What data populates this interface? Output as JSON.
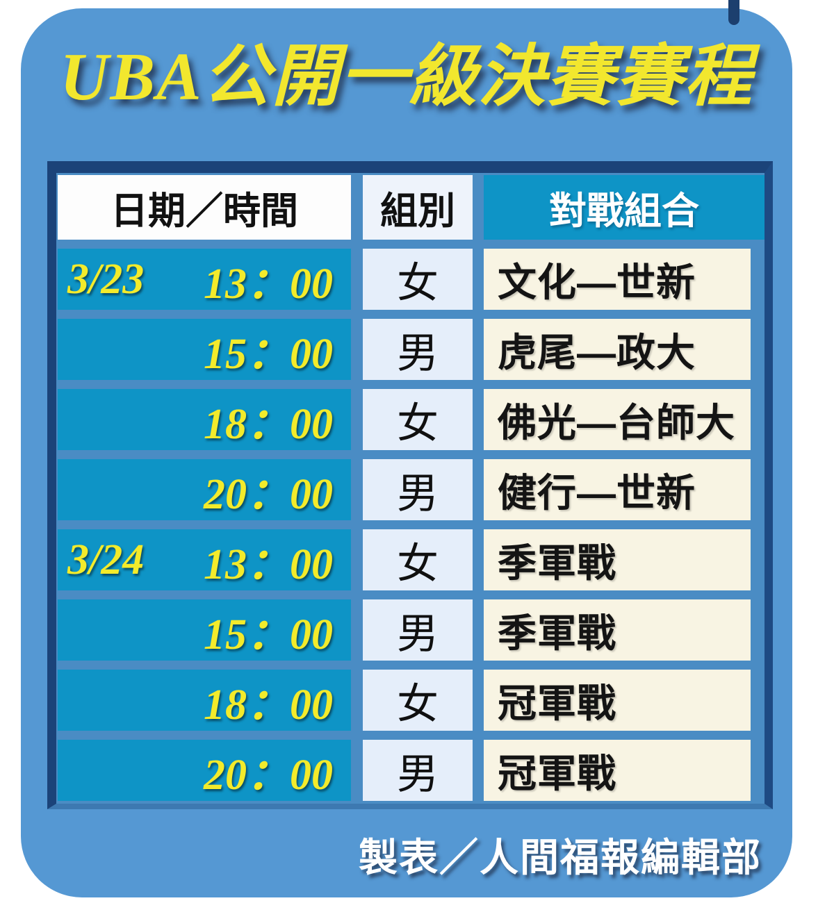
{
  "title": "UBA公開一級決賽賽程",
  "table": {
    "headers": [
      "日期／時間",
      "組別",
      "對戰組合"
    ],
    "rows": [
      {
        "date": "3/23",
        "time": "13：00",
        "group": "女",
        "matchup": "文化—世新"
      },
      {
        "date": "",
        "time": "15：00",
        "group": "男",
        "matchup": "虎尾—政大"
      },
      {
        "date": "",
        "time": "18：00",
        "group": "女",
        "matchup": "佛光—台師大"
      },
      {
        "date": "",
        "time": "20：00",
        "group": "男",
        "matchup": "健行—世新"
      },
      {
        "date": "3/24",
        "time": "13：00",
        "group": "女",
        "matchup": "季軍戰"
      },
      {
        "date": "",
        "time": "15：00",
        "group": "男",
        "matchup": "季軍戰"
      },
      {
        "date": "",
        "time": "18：00",
        "group": "女",
        "matchup": "冠軍戰"
      },
      {
        "date": "",
        "time": "20：00",
        "group": "男",
        "matchup": "冠軍戰"
      }
    ]
  },
  "footer": {
    "credit": "製表／人間福報編輯部"
  },
  "chart_data": {
    "type": "table",
    "title": "UBA公開一級決賽賽程",
    "columns": [
      "日期／時間",
      "組別",
      "對戰組合"
    ],
    "rows": [
      [
        "3/23 13：00",
        "女",
        "文化—世新"
      ],
      [
        "3/23 15：00",
        "男",
        "虎尾—政大"
      ],
      [
        "3/23 18：00",
        "女",
        "佛光—台師大"
      ],
      [
        "3/23 20：00",
        "男",
        "健行—世新"
      ],
      [
        "3/24 13：00",
        "女",
        "季軍戰"
      ],
      [
        "3/24 15：00",
        "男",
        "季軍戰"
      ],
      [
        "3/24 18：00",
        "女",
        "冠軍戰"
      ],
      [
        "3/24 20：00",
        "男",
        "冠軍戰"
      ]
    ]
  },
  "colors": {
    "card_background": "#5598d3",
    "frame_border": "#1b4379",
    "frame_background": "#4a8cc4",
    "teal_cell": "#0e94c6",
    "cream_cell": "#f8f4e3",
    "light_blue_cell": "#e5eefa",
    "header_white_cell": "#fdfdfd",
    "title_yellow": "#f2e72e",
    "time_yellow": "#f3eb2b",
    "text_black": "#141414",
    "text_white": "#ffffff"
  }
}
